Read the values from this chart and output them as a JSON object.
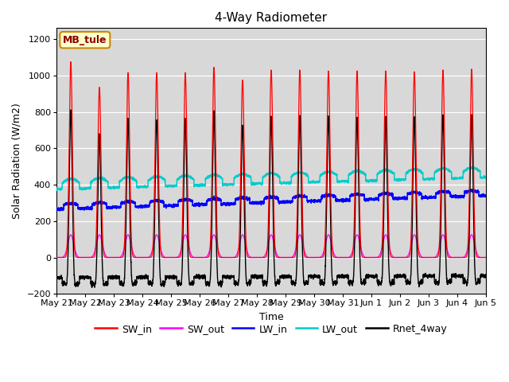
{
  "title": "4-Way Radiometer",
  "xlabel": "Time",
  "ylabel": "Solar Radiation (W/m2)",
  "ylim": [
    -200,
    1260
  ],
  "yticks": [
    -200,
    0,
    200,
    400,
    600,
    800,
    1000,
    1200
  ],
  "station_label": "MB_tule",
  "background_color": "#ffffff",
  "plot_bg_color": "#d8d8d8",
  "num_days": 15,
  "x_labels": [
    "May 21",
    "May 22",
    "May 23",
    "May 24",
    "May 25",
    "May 26",
    "May 27",
    "May 28",
    "May 29",
    "May 30",
    "May 31",
    "Jun 1",
    "Jun 2",
    "Jun 3",
    "Jun 4",
    "Jun 5"
  ],
  "sw_in_peaks": [
    1075,
    935,
    1015,
    1015,
    1015,
    1045,
    975,
    1030,
    1030,
    1025,
    1025,
    1025,
    1020,
    1030,
    1035
  ],
  "legend_entries": [
    {
      "label": "SW_in",
      "color": "#ff0000"
    },
    {
      "label": "SW_out",
      "color": "#ff00ff"
    },
    {
      "label": "LW_in",
      "color": "#0000ff"
    },
    {
      "label": "LW_out",
      "color": "#00cccc"
    },
    {
      "label": "Rnet_4way",
      "color": "#000000"
    }
  ]
}
